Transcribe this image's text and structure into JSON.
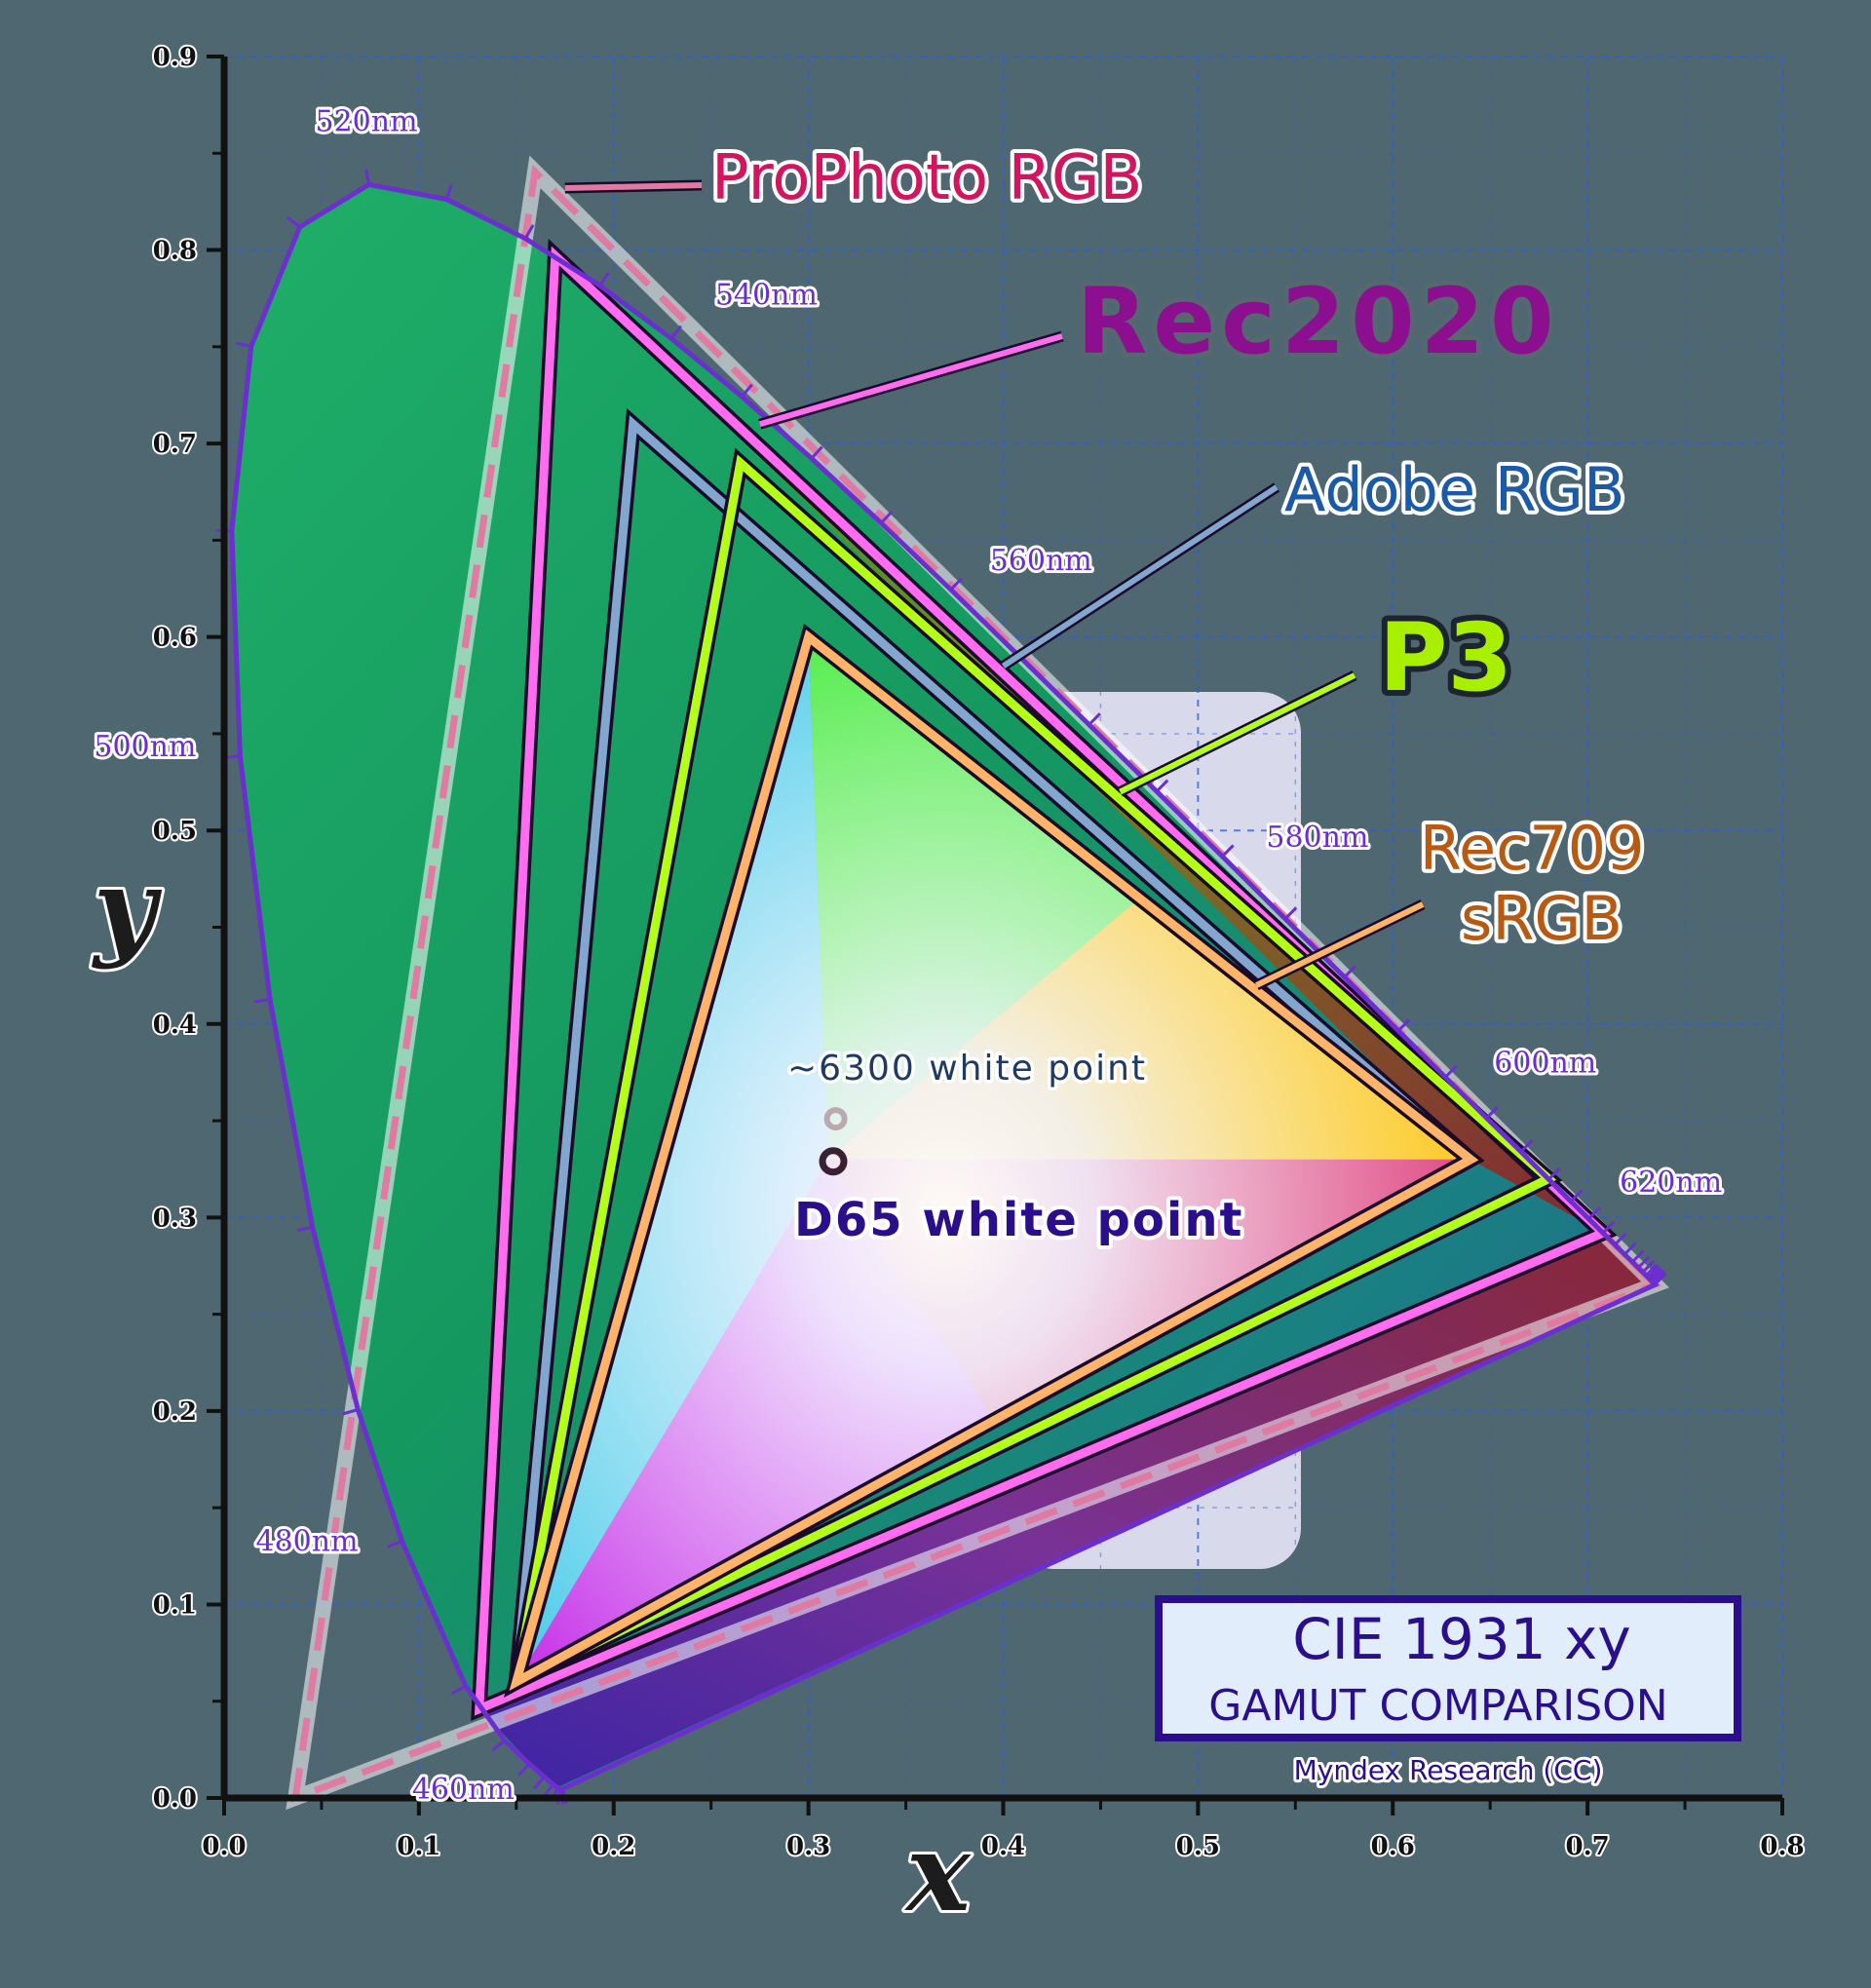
{
  "chart_data": {
    "type": "scatter",
    "title": "CIE 1931 xy",
    "subtitle": "GAMUT COMPARISON",
    "credit": "Myndex Research (CC)",
    "xlabel": "x",
    "ylabel": "y",
    "xlim": [
      0.0,
      0.8
    ],
    "ylim": [
      0.0,
      0.9
    ],
    "grid": true,
    "x_ticks": [
      0.0,
      0.1,
      0.2,
      0.3,
      0.4,
      0.5,
      0.6,
      0.7,
      0.8
    ],
    "y_ticks": [
      0.0,
      0.1,
      0.2,
      0.3,
      0.4,
      0.5,
      0.6,
      0.7,
      0.8,
      0.9
    ],
    "x_tick_labels": [
      "0.0",
      "0.1",
      "0.2",
      "0.3",
      "0.4",
      "0.5",
      "0.6",
      "0.7",
      "0.8"
    ],
    "y_tick_labels": [
      "0.0",
      "0.1",
      "0.2",
      "0.3",
      "0.4",
      "0.5",
      "0.6",
      "0.7",
      "0.8",
      "0.9"
    ],
    "spectral_locus": [
      [
        0.1741,
        0.005
      ],
      [
        0.1738,
        0.0049
      ],
      [
        0.1733,
        0.0048
      ],
      [
        0.1726,
        0.0048
      ],
      [
        0.1714,
        0.0051
      ],
      [
        0.1689,
        0.0069
      ],
      [
        0.1644,
        0.0109
      ],
      [
        0.1566,
        0.0177
      ],
      [
        0.144,
        0.0297
      ],
      [
        0.1241,
        0.0578
      ],
      [
        0.0913,
        0.1327
      ],
      [
        0.0687,
        0.2007
      ],
      [
        0.0454,
        0.295
      ],
      [
        0.0235,
        0.4127
      ],
      [
        0.0082,
        0.5384
      ],
      [
        0.0039,
        0.6548
      ],
      [
        0.0139,
        0.7502
      ],
      [
        0.0389,
        0.812
      ],
      [
        0.0743,
        0.8338
      ],
      [
        0.1142,
        0.8262
      ],
      [
        0.1547,
        0.8059
      ],
      [
        0.1929,
        0.7816
      ],
      [
        0.2296,
        0.7543
      ],
      [
        0.2658,
        0.7243
      ],
      [
        0.3016,
        0.6923
      ],
      [
        0.3373,
        0.6589
      ],
      [
        0.3731,
        0.6245
      ],
      [
        0.4087,
        0.5896
      ],
      [
        0.4441,
        0.5547
      ],
      [
        0.4788,
        0.5202
      ],
      [
        0.5125,
        0.4866
      ],
      [
        0.5448,
        0.4544
      ],
      [
        0.5752,
        0.4242
      ],
      [
        0.6029,
        0.3965
      ],
      [
        0.627,
        0.3725
      ],
      [
        0.6482,
        0.3514
      ],
      [
        0.6658,
        0.334
      ],
      [
        0.6801,
        0.3197
      ],
      [
        0.6915,
        0.3083
      ],
      [
        0.7006,
        0.2993
      ],
      [
        0.7079,
        0.292
      ],
      [
        0.714,
        0.2859
      ],
      [
        0.719,
        0.2809
      ],
      [
        0.723,
        0.277
      ],
      [
        0.726,
        0.274
      ],
      [
        0.7283,
        0.2717
      ],
      [
        0.73,
        0.27
      ],
      [
        0.7311,
        0.2689
      ],
      [
        0.732,
        0.268
      ],
      [
        0.7327,
        0.2673
      ],
      [
        0.7334,
        0.2666
      ],
      [
        0.734,
        0.266
      ],
      [
        0.7344,
        0.2656
      ],
      [
        0.7346,
        0.2654
      ],
      [
        0.7347,
        0.2653
      ]
    ],
    "wavelength_labels": [
      {
        "label": "460nm",
        "nm": 460,
        "x": 0.144,
        "y": 0.0297
      },
      {
        "label": "480nm",
        "nm": 480,
        "x": 0.0913,
        "y": 0.1327
      },
      {
        "label": "500nm",
        "nm": 500,
        "x": 0.0082,
        "y": 0.5384
      },
      {
        "label": "520nm",
        "nm": 520,
        "x": 0.0743,
        "y": 0.8338
      },
      {
        "label": "540nm",
        "nm": 540,
        "x": 0.2296,
        "y": 0.7543
      },
      {
        "label": "560nm",
        "nm": 560,
        "x": 0.3731,
        "y": 0.6245
      },
      {
        "label": "580nm",
        "nm": 580,
        "x": 0.5125,
        "y": 0.4866
      },
      {
        "label": "600nm",
        "nm": 600,
        "x": 0.627,
        "y": 0.3725
      },
      {
        "label": "620nm",
        "nm": 620,
        "x": 0.6915,
        "y": 0.3083
      }
    ],
    "series": [
      {
        "name": "ProPhoto RGB",
        "color": "#d3145f",
        "line_color": "#e07aa2",
        "points": [
          [
            0.7347,
            0.2653
          ],
          [
            0.1596,
            0.8404
          ],
          [
            0.0366,
            0.0001
          ]
        ]
      },
      {
        "name": "Rec2020",
        "color": "#8b0f8f",
        "line_color": "#ff6cf0",
        "points": [
          [
            0.708,
            0.292
          ],
          [
            0.17,
            0.797
          ],
          [
            0.131,
            0.046
          ]
        ]
      },
      {
        "name": "Adobe RGB",
        "color": "#1a5aa6",
        "line_color": "#82a6ce",
        "points": [
          [
            0.64,
            0.33
          ],
          [
            0.21,
            0.71
          ],
          [
            0.15,
            0.06
          ]
        ]
      },
      {
        "name": "P3",
        "color": "#a8f000",
        "line_color": "#b4ff1a",
        "points": [
          [
            0.68,
            0.32
          ],
          [
            0.265,
            0.69
          ],
          [
            0.15,
            0.06
          ]
        ]
      },
      {
        "name": "Rec709\nsRGB",
        "color": "#b85a12",
        "line_color": "#ffb46a",
        "points": [
          [
            0.64,
            0.33
          ],
          [
            0.3,
            0.6
          ],
          [
            0.15,
            0.06
          ]
        ]
      }
    ],
    "white_points": [
      {
        "label": "~6300 white point",
        "x": 0.314,
        "y": 0.351,
        "color": "#bba9b1"
      },
      {
        "label": "D65 white point",
        "x": 0.3127,
        "y": 0.329,
        "color": "#3a2030"
      }
    ]
  }
}
